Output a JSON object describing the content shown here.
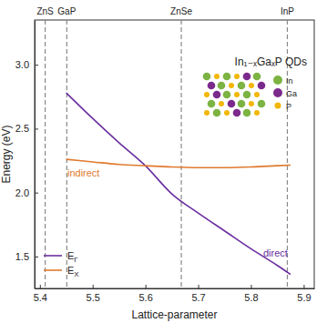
{
  "chart_data": {
    "type": "line",
    "title": "In₁₋ₓGaₓP QDs",
    "x_label": "Lattice-parameter",
    "y_label": "Energy (eV)",
    "x": [
      5.45,
      5.5,
      5.55,
      5.6,
      5.65,
      5.7,
      5.75,
      5.8,
      5.85,
      5.875
    ],
    "series": [
      {
        "name": "EΓ",
        "color": "#6a2fa0",
        "label": "direct",
        "values": [
          2.78,
          2.58,
          2.39,
          2.21,
          1.99,
          1.84,
          1.7,
          1.56,
          1.43,
          1.36
        ]
      },
      {
        "name": "EX",
        "color": "#e07a2e",
        "label": "indirect",
        "values": [
          2.26,
          2.24,
          2.22,
          2.21,
          2.2,
          2.195,
          2.195,
          2.2,
          2.21,
          2.215
        ]
      }
    ],
    "reference_lines": [
      {
        "x": 5.41,
        "label": "ZnS"
      },
      {
        "x": 5.451,
        "label": "GaP"
      },
      {
        "x": 5.668,
        "label": "ZnSe"
      },
      {
        "x": 5.869,
        "label": "InP"
      }
    ],
    "inset_legend": [
      {
        "name": "In",
        "color": "#7cb342"
      },
      {
        "name": "Ga",
        "color": "#7b2a8c"
      },
      {
        "name": "P",
        "color": "#f2b705"
      }
    ],
    "xlim": [
      5.39,
      5.92
    ],
    "ylim": [
      1.25,
      3.35
    ],
    "xticks": [
      {
        "value": 5.4,
        "label": "5.4"
      },
      {
        "value": 5.5,
        "label": "5.5"
      },
      {
        "value": 5.6,
        "label": "5.6"
      },
      {
        "value": 5.7,
        "label": "5.7"
      },
      {
        "value": 5.8,
        "label": "5.8"
      },
      {
        "value": 5.9,
        "label": "5.9"
      }
    ],
    "yticks": [
      {
        "value": 1.5,
        "label": "1.5"
      },
      {
        "value": 2.0,
        "label": "2.0"
      },
      {
        "value": 2.5,
        "label": "2.5"
      },
      {
        "value": 3.0,
        "label": "3.0"
      }
    ],
    "grid": false,
    "legend": "lower left"
  }
}
